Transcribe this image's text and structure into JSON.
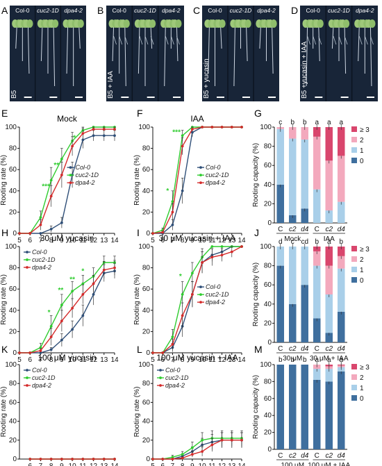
{
  "colors": {
    "col0": "#2f4f78",
    "cuc2": "#2fcc2f",
    "dpa4": "#d42b2b",
    "cap0": "#3f6f9e",
    "cap1": "#a9cfe9",
    "cap2": "#f3a9bd",
    "cap3": "#d9466d",
    "photo_bg": "#182538"
  },
  "photos": [
    {
      "letter": "A",
      "side": "B5",
      "labels": [
        "Col-0",
        "cuc2-1D",
        "dpa4-2"
      ]
    },
    {
      "letter": "B",
      "side": "B5 + IAA",
      "labels": [
        "Col-0",
        "cuc2-1D",
        "dpa4-2"
      ]
    },
    {
      "letter": "C",
      "side": "B5 + yucasin",
      "labels": [
        "Col-0",
        "cuc2-1D",
        "dpa4-2"
      ]
    },
    {
      "letter": "D",
      "side": "B5 +yucasin + IAA",
      "labels": [
        "Col-0",
        "cuc2-1D",
        "dpa4-2"
      ]
    }
  ],
  "chart_data": [
    {
      "id": "E",
      "type": "line",
      "title": "Mock",
      "ylabel": "Rooting rate (%)",
      "x": [
        5,
        6,
        7,
        8,
        9,
        10,
        11,
        12,
        13,
        14
      ],
      "ylim": [
        0,
        100
      ],
      "yticks": [
        0,
        20,
        40,
        60,
        80,
        100
      ],
      "series": [
        {
          "name": "Col-0",
          "values": [
            0,
            0,
            0,
            4,
            10,
            55,
            88,
            92,
            92,
            92
          ],
          "err": [
            0,
            0,
            0,
            3,
            5,
            12,
            8,
            5,
            5,
            5
          ]
        },
        {
          "name": "cuc2-1D",
          "values": [
            0,
            0,
            15,
            50,
            70,
            87,
            97,
            100,
            100,
            100
          ],
          "err": [
            0,
            0,
            6,
            12,
            10,
            8,
            3,
            0,
            0,
            0
          ]
        },
        {
          "name": "dpa4-2",
          "values": [
            0,
            0,
            8,
            35,
            55,
            82,
            94,
            98,
            98,
            98
          ],
          "err": [
            0,
            0,
            5,
            10,
            12,
            9,
            5,
            2,
            2,
            2
          ]
        }
      ],
      "annotations": [
        {
          "x": 7.5,
          "y": 42,
          "text": "***"
        },
        {
          "x": 8.5,
          "y": 62,
          "text": "**"
        },
        {
          "x": 10.2,
          "y": 88,
          "text": "*"
        }
      ]
    },
    {
      "id": "F",
      "type": "line",
      "title": "IAA",
      "ylabel": "Rooting rate (%)",
      "x": [
        5,
        6,
        7,
        8,
        9,
        10,
        11,
        12,
        13,
        14
      ],
      "ylim": [
        0,
        100
      ],
      "yticks": [
        0,
        20,
        40,
        60,
        80,
        100
      ],
      "series": [
        {
          "name": "Col-0",
          "values": [
            0,
            0,
            8,
            40,
            95,
            100,
            100,
            100,
            100,
            100
          ],
          "err": [
            0,
            0,
            5,
            12,
            4,
            0,
            0,
            0,
            0,
            0
          ]
        },
        {
          "name": "cuc2-1D",
          "values": [
            0,
            3,
            30,
            92,
            100,
            100,
            100,
            100,
            100,
            100
          ],
          "err": [
            0,
            2,
            10,
            5,
            0,
            0,
            0,
            0,
            0,
            0
          ]
        },
        {
          "name": "dpa4-2",
          "values": [
            0,
            1,
            20,
            82,
            98,
            100,
            100,
            100,
            100,
            100
          ],
          "err": [
            0,
            1,
            8,
            8,
            2,
            0,
            0,
            0,
            0,
            0
          ]
        }
      ],
      "annotations": [
        {
          "x": 6.5,
          "y": 38,
          "text": "*"
        },
        {
          "x": 7.4,
          "y": 93,
          "text": "***"
        }
      ]
    },
    {
      "id": "G",
      "type": "bar",
      "ylabel": "Rooting capacity (%)",
      "categories": [
        "C",
        "c2",
        "d4",
        "C",
        "c2",
        "d4"
      ],
      "groups": [
        "Mock",
        "IAA"
      ],
      "ylim": [
        0,
        100
      ],
      "yticks": [
        0,
        20,
        40,
        60,
        80,
        100
      ],
      "letters": [
        "c",
        "b",
        "b",
        "a",
        "a",
        "a"
      ],
      "legend": [
        "≥ 3",
        "2",
        "1",
        "0"
      ],
      "stacks": [
        [
          40,
          58,
          2,
          0
        ],
        [
          8,
          80,
          12,
          0
        ],
        [
          15,
          72,
          13,
          0
        ],
        [
          0,
          35,
          55,
          10
        ],
        [
          0,
          13,
          52,
          35
        ],
        [
          0,
          22,
          48,
          30
        ]
      ]
    },
    {
      "id": "H",
      "type": "line",
      "title": "30 μM yucasin",
      "ylabel": "Rooting rate (%)",
      "x": [
        5,
        6,
        7,
        8,
        9,
        10,
        11,
        12,
        13,
        14
      ],
      "ylim": [
        0,
        100
      ],
      "yticks": [
        0,
        20,
        40,
        60,
        80,
        100
      ],
      "series": [
        {
          "name": "Col-0",
          "values": [
            0,
            0,
            0,
            3,
            12,
            22,
            35,
            55,
            75,
            77
          ],
          "err": [
            0,
            0,
            0,
            2,
            6,
            8,
            10,
            10,
            8,
            7
          ]
        },
        {
          "name": "cuc2-1D",
          "values": [
            0,
            0,
            5,
            25,
            45,
            58,
            65,
            72,
            85,
            85
          ],
          "err": [
            0,
            0,
            4,
            10,
            10,
            9,
            8,
            8,
            6,
            6
          ]
        },
        {
          "name": "dpa4-2",
          "values": [
            0,
            0,
            2,
            15,
            30,
            42,
            55,
            65,
            78,
            80
          ],
          "err": [
            0,
            0,
            2,
            8,
            10,
            9,
            9,
            8,
            8,
            7
          ]
        }
      ],
      "annotations": [
        {
          "x": 7.8,
          "y": 36,
          "text": "*"
        },
        {
          "x": 8.9,
          "y": 57,
          "text": "**"
        },
        {
          "x": 10,
          "y": 67,
          "text": "**"
        },
        {
          "x": 11,
          "y": 75,
          "text": "*"
        }
      ]
    },
    {
      "id": "I",
      "type": "line",
      "title": "30 μM yucasin + IAA",
      "ylabel": "Rooting rate (%)",
      "x": [
        5,
        6,
        7,
        8,
        9,
        10,
        11,
        12,
        13,
        14
      ],
      "ylim": [
        0,
        100
      ],
      "yticks": [
        0,
        20,
        40,
        60,
        80,
        100
      ],
      "series": [
        {
          "name": "Col-0",
          "values": [
            0,
            0,
            5,
            25,
            55,
            85,
            92,
            95,
            100,
            100
          ],
          "err": [
            0,
            0,
            4,
            10,
            12,
            10,
            6,
            5,
            0,
            0
          ]
        },
        {
          "name": "cuc2-1D",
          "values": [
            0,
            0,
            15,
            55,
            75,
            90,
            100,
            100,
            100,
            100
          ],
          "err": [
            0,
            0,
            7,
            12,
            10,
            8,
            0,
            0,
            0,
            0
          ]
        },
        {
          "name": "dpa4-2",
          "values": [
            0,
            0,
            8,
            35,
            55,
            85,
            90,
            92,
            95,
            100
          ],
          "err": [
            0,
            0,
            5,
            12,
            12,
            10,
            8,
            6,
            5,
            0
          ]
        }
      ],
      "annotations": [
        {
          "x": 7.8,
          "y": 70,
          "text": "*"
        }
      ]
    },
    {
      "id": "J",
      "type": "bar",
      "ylabel": "Rooting capacity (%)",
      "categories": [
        "C",
        "c2",
        "d4",
        "C",
        "c2",
        "d4"
      ],
      "groups": [
        "30 μM",
        "30 μM + IAA"
      ],
      "ylim": [
        0,
        100
      ],
      "yticks": [
        0,
        20,
        40,
        60,
        80,
        100
      ],
      "letters": [
        "d",
        "c",
        "cd",
        "b",
        "a",
        "b"
      ],
      "legend": [
        "≥ 3",
        "2",
        "1",
        "0"
      ],
      "stacks": [
        [
          80,
          20,
          0,
          0
        ],
        [
          40,
          60,
          0,
          0
        ],
        [
          60,
          40,
          0,
          0
        ],
        [
          25,
          55,
          15,
          5
        ],
        [
          10,
          40,
          30,
          20
        ],
        [
          32,
          45,
          13,
          10
        ]
      ]
    },
    {
      "id": "K",
      "type": "line",
      "title": "100 μM yucasin",
      "ylabel": "Rooting rate (%)",
      "x": [
        6,
        7,
        8,
        9,
        10,
        11,
        12,
        13,
        14
      ],
      "ylim": [
        0,
        100
      ],
      "yticks": [
        0,
        20,
        40,
        60,
        80,
        100
      ],
      "series": [
        {
          "name": "Col-0",
          "values": [
            0,
            0,
            0,
            0,
            0,
            0,
            0,
            0,
            0
          ],
          "err": [
            0,
            0,
            0,
            0,
            0,
            0,
            0,
            0,
            0
          ]
        },
        {
          "name": "cuc2-1D",
          "values": [
            0,
            0,
            0,
            0,
            0,
            0,
            0,
            0,
            0
          ],
          "err": [
            0,
            0,
            0,
            0,
            0,
            0,
            0,
            0,
            0
          ]
        },
        {
          "name": "dpa4-2",
          "values": [
            0,
            0,
            0,
            0,
            0,
            0,
            0,
            0,
            0
          ],
          "err": [
            0,
            0,
            0,
            0,
            0,
            0,
            0,
            0,
            0
          ]
        }
      ],
      "annotations": []
    },
    {
      "id": "L",
      "type": "line",
      "title": "100 μM yucasin + IAA",
      "ylabel": "Rooting rate (%)",
      "x": [
        5,
        6,
        7,
        8,
        9,
        10,
        11,
        12,
        13,
        14
      ],
      "ylim": [
        0,
        100
      ],
      "yticks": [
        0,
        20,
        40,
        60,
        80,
        100
      ],
      "series": [
        {
          "name": "Col-0",
          "values": [
            0,
            0,
            0,
            3,
            8,
            15,
            18,
            20,
            20,
            20
          ],
          "err": [
            0,
            0,
            0,
            2,
            5,
            7,
            8,
            8,
            8,
            8
          ]
        },
        {
          "name": "cuc2-1D",
          "values": [
            0,
            0,
            2,
            5,
            12,
            20,
            22,
            22,
            22,
            22
          ],
          "err": [
            0,
            0,
            2,
            3,
            6,
            8,
            8,
            8,
            8,
            8
          ]
        },
        {
          "name": "dpa4-2",
          "values": [
            0,
            0,
            0,
            1,
            5,
            8,
            15,
            20,
            20,
            20
          ],
          "err": [
            0,
            0,
            0,
            1,
            3,
            5,
            7,
            8,
            8,
            8
          ]
        }
      ],
      "annotations": []
    },
    {
      "id": "M",
      "type": "bar",
      "ylabel": "Rooting capacity (%)",
      "categories": [
        "C",
        "c2",
        "d4",
        "C",
        "c2",
        "d4"
      ],
      "groups": [
        "100 μM",
        "100 μM + IAA"
      ],
      "ylim": [
        0,
        100
      ],
      "yticks": [
        0,
        20,
        40,
        60,
        80,
        100
      ],
      "letters": [
        "b",
        "b",
        "b",
        "a",
        "a",
        "a"
      ],
      "legend": [
        "≥ 3",
        "2",
        "1",
        "0"
      ],
      "stacks": [
        [
          100,
          0,
          0,
          0
        ],
        [
          100,
          0,
          0,
          0
        ],
        [
          100,
          0,
          0,
          0
        ],
        [
          82,
          13,
          5,
          0
        ],
        [
          80,
          15,
          3,
          2
        ],
        [
          92,
          5,
          2,
          1
        ]
      ]
    }
  ]
}
